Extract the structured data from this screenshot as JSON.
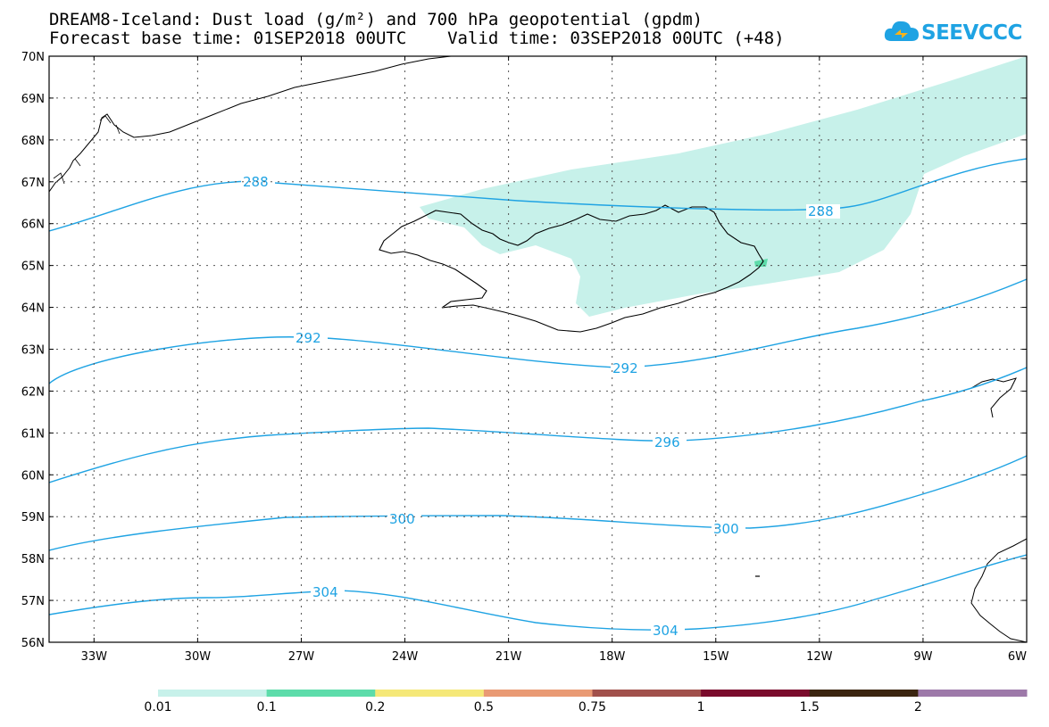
{
  "title": {
    "line1": "DREAM8-Iceland: Dust load (g/m²) and 700 hPa geopotential (gpdm)",
    "line2": "Forecast base time: 01SEP2018 00UTC    Valid time: 03SEP2018 00UTC (+48)"
  },
  "logo": {
    "text": "SEEVCCC",
    "icon": "cloud-icon",
    "color": "#1fa3e3"
  },
  "map": {
    "lat_labels": [
      "70N",
      "69N",
      "68N",
      "67N",
      "66N",
      "65N",
      "64N",
      "63N",
      "62N",
      "61N",
      "60N",
      "59N",
      "58N",
      "57N",
      "56N"
    ],
    "lon_labels": [
      "33W",
      "30W",
      "27W",
      "24W",
      "21W",
      "18W",
      "15W",
      "12W",
      "9W",
      "6W"
    ],
    "lat_range": [
      56,
      70
    ],
    "lon_range": [
      -34.3,
      -6
    ],
    "contour_color": "#1fa3e3",
    "dust_color": "#c7f1ea",
    "contours": [
      {
        "label": "288",
        "label_positions": [
          "288a",
          "288b"
        ]
      },
      {
        "label": "292",
        "label_positions": [
          "292a",
          "292b"
        ]
      },
      {
        "label": "296",
        "label_positions": [
          "296a"
        ]
      },
      {
        "label": "300",
        "label_positions": [
          "300a",
          "300b"
        ]
      },
      {
        "label": "304",
        "label_positions": [
          "304a",
          "304b"
        ]
      }
    ]
  },
  "colorbar": {
    "labels": [
      "0.01",
      "0.1",
      "0.2",
      "0.5",
      "0.75",
      "1",
      "1.5",
      "2"
    ],
    "colors": [
      "#c7f1ea",
      "#5ddcaa",
      "#f5e878",
      "#e99a74",
      "#a1504b",
      "#7a0b2c",
      "#3b2510",
      "#9d79a9"
    ]
  }
}
